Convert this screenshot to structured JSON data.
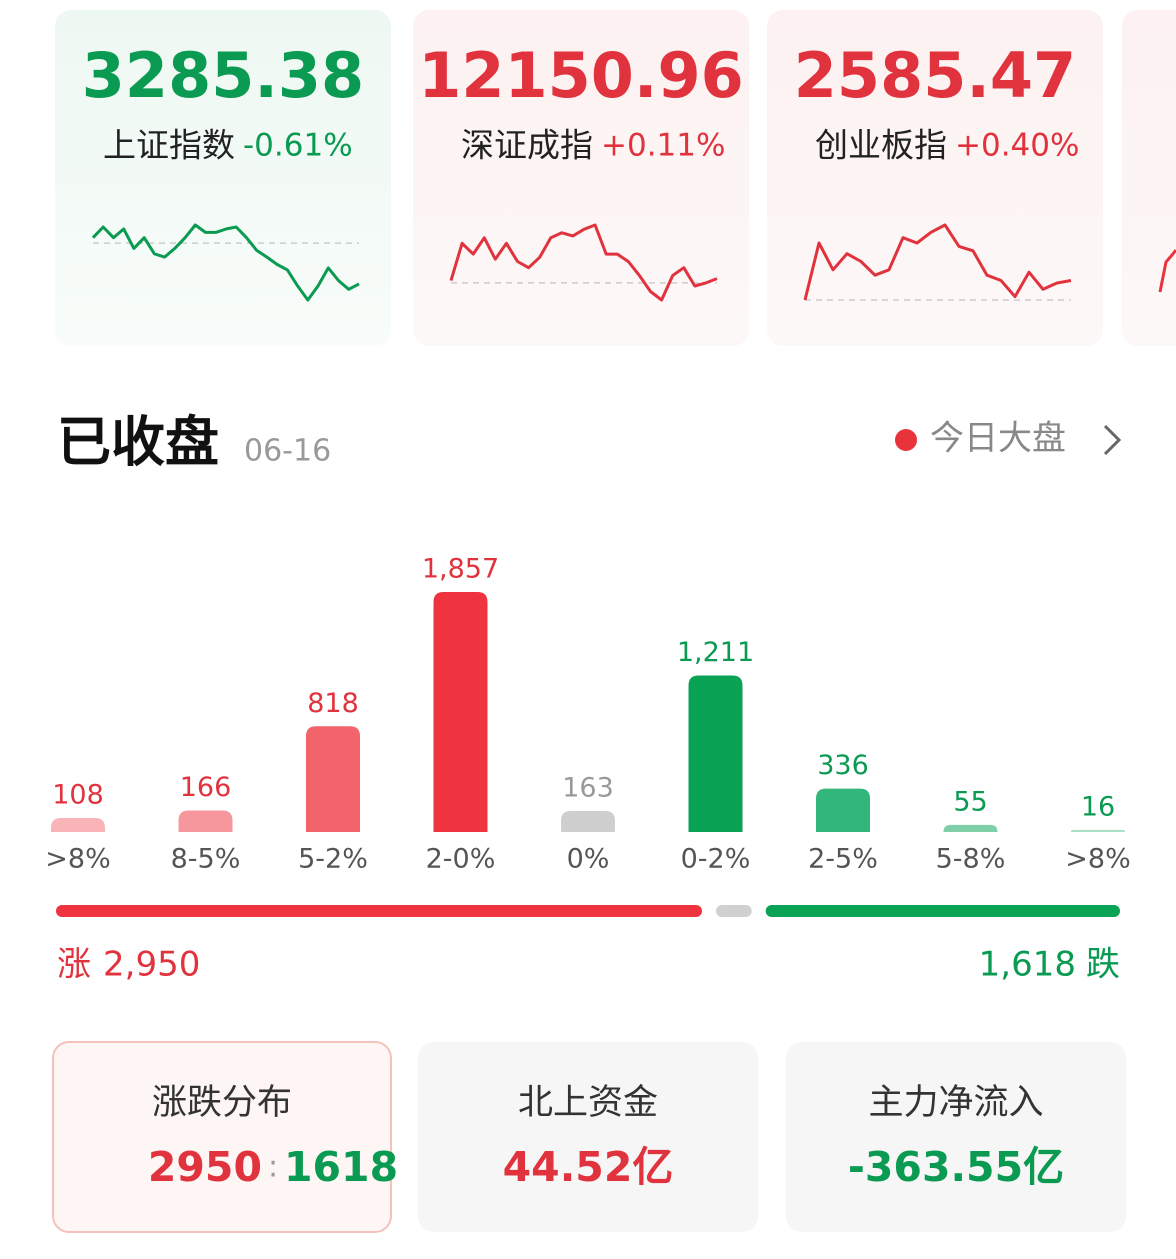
{
  "indices": [
    {
      "value": "3285.38",
      "name": "上证指数",
      "change": "-0.61%",
      "trend": [
        0.08,
        0.24,
        0.08,
        0.21,
        -0.08,
        0.08,
        -0.16,
        -0.21,
        -0.08,
        0.08,
        0.27,
        0.16,
        0.16,
        0.21,
        0.24,
        0.08,
        -0.11,
        -0.21,
        -0.32,
        -0.4,
        -0.64,
        -0.85,
        -0.64,
        -0.37,
        -0.56,
        -0.69,
        -0.61
      ]
    },
    {
      "value": "12150.96",
      "name": "深证成指",
      "change": "+0.11%",
      "trend": [
        0.06,
        1.02,
        0.74,
        1.16,
        0.61,
        1.02,
        0.55,
        0.39,
        0.66,
        1.16,
        1.29,
        1.21,
        1.38,
        1.49,
        0.74,
        0.74,
        0.55,
        0.19,
        -0.22,
        -0.44,
        0.19,
        0.39,
        -0.08,
        0,
        0.11
      ]
    },
    {
      "value": "2585.47",
      "name": "创业板指",
      "change": "+0.40%",
      "trend": [
        0,
        1.17,
        0.62,
        0.95,
        0.79,
        0.51,
        0.62,
        1.28,
        1.17,
        1.39,
        1.54,
        1.1,
        1.01,
        0.51,
        0.4,
        0.07,
        0.57,
        0.22,
        0.35,
        0.4
      ]
    }
  ],
  "header": {
    "title": "已收盘",
    "date": "06-16",
    "link": "今日大盘"
  },
  "chart_data": {
    "type": "bar",
    "categories": [
      ">8%",
      "8-5%",
      "5-2%",
      "2-0%",
      "0%",
      "0-2%",
      "2-5%",
      "5-8%",
      ">8%"
    ],
    "values": [
      108,
      166,
      818,
      1857,
      163,
      1211,
      336,
      55,
      16
    ],
    "value_labels": [
      "108",
      "166",
      "818",
      "1,857",
      "163",
      "1,211",
      "336",
      "55",
      "16"
    ],
    "colors": [
      "#f8b4b8",
      "#f6969d",
      "#f2636c",
      "#ef3440",
      "#cfcfcf",
      "#0aa254",
      "#33b67a",
      "#7fd0a9",
      "#acdfc7"
    ]
  },
  "breadth": {
    "rise_label": "涨",
    "rise": {
      "value": 2950,
      "label": "2,950"
    },
    "fall_label": "跌",
    "fall": {
      "value": 1618,
      "label": "1,618"
    }
  },
  "cards": [
    {
      "title": "涨跌分布",
      "up": "2950",
      "separator": ":",
      "down": "1618"
    },
    {
      "title": "北上资金",
      "value": "44.52亿"
    },
    {
      "title": "主力净流入",
      "value": "-363.55亿"
    }
  ]
}
